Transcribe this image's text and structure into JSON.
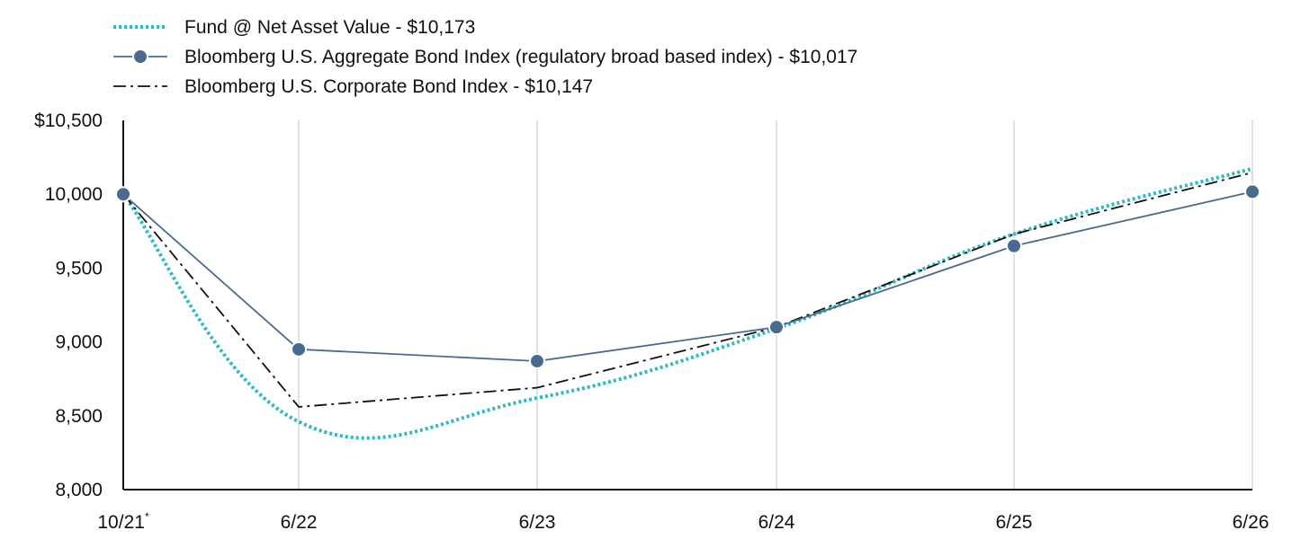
{
  "chart_data": {
    "type": "line",
    "categories": [
      "10/21",
      "6/22",
      "6/23",
      "6/24",
      "6/25",
      "6/26"
    ],
    "first_category_marker": "*",
    "ylim": [
      8000,
      10500
    ],
    "y_ticks": [
      "$10,500",
      "10,000",
      "9,500",
      "9,000",
      "8,500",
      "8,000"
    ],
    "y_tick_values": [
      10500,
      10000,
      9500,
      9000,
      8500,
      8000
    ],
    "grid": "vertical",
    "legend_position": "top-left",
    "series": [
      {
        "name": "Fund @ Net Asset Value - $10,173",
        "style": "dotted",
        "color": "#2bbcbf",
        "smooth": true,
        "values": [
          10000,
          8460,
          8620,
          9090,
          9730,
          10173
        ]
      },
      {
        "name": "Bloomberg U.S. Aggregate Bond Index (regulatory broad based index) - $10,017",
        "style": "solid-markers",
        "color": "#4a6b8f",
        "smooth": false,
        "values": [
          10000,
          8950,
          8870,
          9100,
          9650,
          10017
        ]
      },
      {
        "name": "Bloomberg U.S. Corporate Bond Index - $10,147",
        "style": "dash-dot",
        "color": "#111111",
        "smooth": false,
        "values": [
          10000,
          8560,
          8690,
          9100,
          9730,
          10147
        ]
      }
    ]
  }
}
